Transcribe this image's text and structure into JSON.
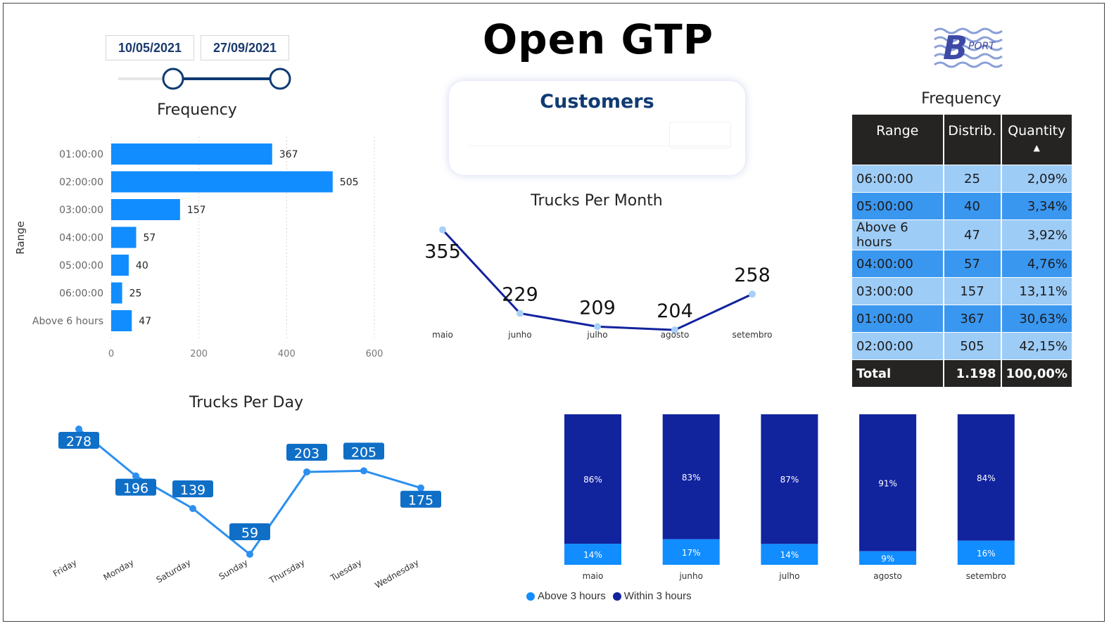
{
  "header": {
    "title": "Open GTP",
    "date_start": "10/05/2021",
    "date_end": "27/09/2021",
    "logo_text": "PORT",
    "logo_letter": "B"
  },
  "customers_card": {
    "title": "Customers"
  },
  "colors": {
    "bar_blue": "#118dff",
    "navy": "#12239e",
    "light_blue": "#a8d0f7",
    "mid_blue": "#2b8ff0",
    "label_box": "#0f6fc6"
  },
  "frequency_table": {
    "title": "Frequency",
    "headers": [
      "Range",
      "Distrib.",
      "Quantity"
    ],
    "rows": [
      {
        "range": "06:00:00",
        "distrib": "25",
        "quantity": "2,09%"
      },
      {
        "range": "05:00:00",
        "distrib": "40",
        "quantity": "3,34%"
      },
      {
        "range": "Above 6 hours",
        "distrib": "47",
        "quantity": "3,92%"
      },
      {
        "range": "04:00:00",
        "distrib": "57",
        "quantity": "4,76%"
      },
      {
        "range": "03:00:00",
        "distrib": "157",
        "quantity": "13,11%"
      },
      {
        "range": "01:00:00",
        "distrib": "367",
        "quantity": "30,63%"
      },
      {
        "range": "02:00:00",
        "distrib": "505",
        "quantity": "42,15%"
      }
    ],
    "total": {
      "label": "Total",
      "distrib": "1.198",
      "quantity": "100,00%"
    }
  },
  "chart_data": [
    {
      "id": "frequency_bar",
      "type": "bar",
      "orientation": "horizontal",
      "title": "Frequency",
      "ylabel": "Range",
      "categories": [
        "01:00:00",
        "02:00:00",
        "03:00:00",
        "04:00:00",
        "05:00:00",
        "06:00:00",
        "Above 6 hours"
      ],
      "values": [
        367,
        505,
        157,
        57,
        40,
        25,
        47
      ],
      "xlim": [
        0,
        600
      ],
      "xticks": [
        0,
        200,
        400,
        600
      ],
      "grid": true
    },
    {
      "id": "trucks_per_month",
      "type": "line",
      "title": "Trucks Per Month",
      "categories": [
        "maio",
        "junho",
        "julho",
        "agosto",
        "setembro"
      ],
      "values": [
        355,
        229,
        209,
        204,
        258
      ]
    },
    {
      "id": "trucks_per_day",
      "type": "line",
      "title": "Trucks Per Day",
      "categories": [
        "Friday",
        "Monday",
        "Saturday",
        "Sunday",
        "Thursday",
        "Tuesday",
        "Wednesday"
      ],
      "values": [
        278,
        196,
        139,
        59,
        203,
        205,
        175
      ]
    },
    {
      "id": "stacked_percent",
      "type": "bar",
      "stacked": "100%",
      "categories": [
        "maio",
        "junho",
        "julho",
        "agosto",
        "setembro"
      ],
      "series": [
        {
          "name": "Above 3 hours",
          "values": [
            14,
            17,
            14,
            9,
            16
          ],
          "labels": [
            "14%",
            "17%",
            "14%",
            "9%",
            "16%"
          ]
        },
        {
          "name": "Within 3 hours",
          "values": [
            86,
            83,
            87,
            91,
            84
          ],
          "labels": [
            "86%",
            "83%",
            "87%",
            "91%",
            "84%"
          ]
        }
      ],
      "legend": "bottom"
    }
  ]
}
